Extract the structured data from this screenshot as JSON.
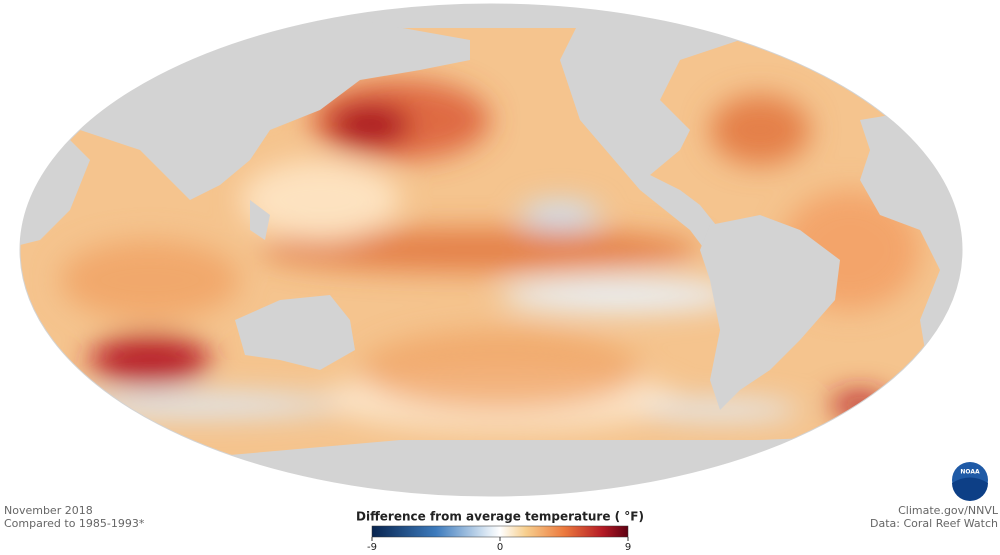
{
  "header": {
    "date": "November 2018",
    "baseline": "Compared to 1985-1993*"
  },
  "credits": {
    "source": "Climate.gov/NNVL",
    "data": "Data: Coral Reef Watch"
  },
  "logo": "NOAA",
  "legend": {
    "title": "Difference from average temperature ( °F)",
    "range": [
      -9,
      9
    ],
    "ticks": [
      -9,
      0,
      9
    ]
  }
}
